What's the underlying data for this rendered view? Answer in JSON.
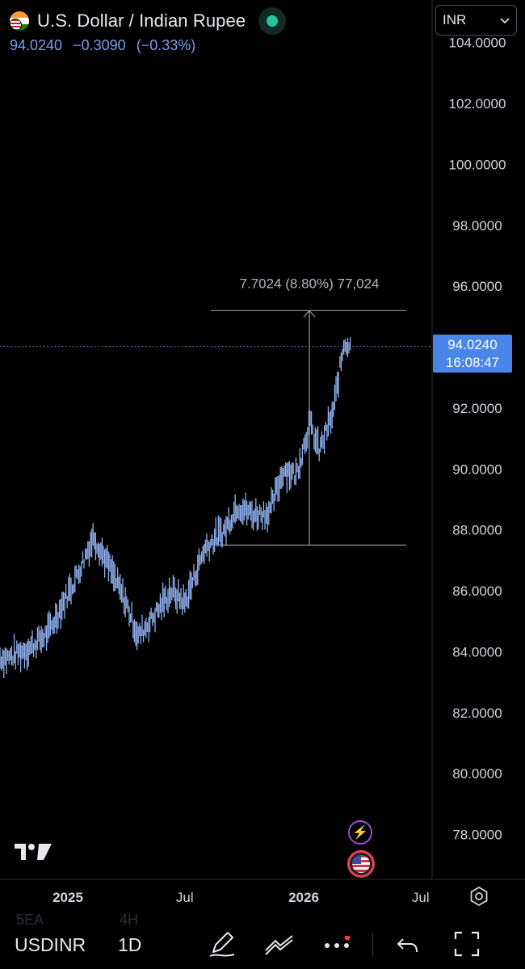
{
  "header": {
    "title": "U.S. Dollar / Indian Rupee",
    "last_price": "94.0240",
    "change": "−0.3090",
    "change_pct": "(−0.33%)",
    "status": "market-open"
  },
  "currency_select": {
    "value": "INR",
    "icon": "chevron-down-icon"
  },
  "price_tag": {
    "price": "94.0240",
    "countdown": "16:08:47"
  },
  "measure": {
    "label": "7.7024 (8.80%) 77,024"
  },
  "colors": {
    "background": "#000000",
    "candle": "#8fb0ee",
    "accent": "#4a86ea",
    "axis_text": "#d1d4dc",
    "measure_line": "#9598a1"
  },
  "chart_data": {
    "type": "line",
    "symbol": "USDINR",
    "interval": "1D",
    "y_ticks": [
      "104.0000",
      "102.0000",
      "100.0000",
      "98.0000",
      "96.0000",
      "94.0000",
      "92.0000",
      "90.0000",
      "88.0000",
      "86.0000",
      "84.0000",
      "82.0000",
      "80.0000",
      "78.0000"
    ],
    "x_ticks": [
      "2025",
      "Jul",
      "2026",
      "Jul"
    ],
    "ylim": [
      76.5,
      105
    ],
    "x": [
      "2024-10-01",
      "2024-11-01",
      "2024-12-01",
      "2025-01-15",
      "2025-02-10",
      "2025-03-01",
      "2025-04-01",
      "2025-04-20",
      "2025-05-15",
      "2025-06-10",
      "2025-07-01",
      "2025-08-01",
      "2025-09-01",
      "2025-09-20",
      "2025-10-15",
      "2025-11-10",
      "2025-12-01",
      "2025-12-20",
      "2026-01-10",
      "2026-01-25",
      "2026-02-15",
      "2026-03-05",
      "2026-03-15"
    ],
    "series": [
      {
        "values": [
          83.8,
          84.1,
          84.6,
          86.5,
          87.8,
          87.0,
          85.6,
          84.5,
          85.2,
          86.0,
          85.6,
          87.4,
          88.0,
          88.8,
          88.5,
          88.6,
          90.0,
          89.8,
          91.5,
          90.6,
          91.8,
          94.2,
          94.0
        ]
      }
    ],
    "last_price": 94.024,
    "measure": {
      "from": 87.5,
      "to": 95.2,
      "delta": 7.7024,
      "delta_pct": 8.8,
      "ticks": 77024
    },
    "grid": false,
    "legend": "none"
  },
  "branding": {
    "logo": "tradingview-logo"
  },
  "floating_icons": [
    "lightning-icon",
    "us-flag-icon"
  ],
  "bottom_bar": {
    "ghost_left": "5EA",
    "ghost_right": "4H",
    "symbol": "USDINR",
    "interval": "1D",
    "tools": [
      "pen-icon",
      "drawings-icon",
      "more-icon",
      "undo-icon",
      "fullscreen-icon"
    ],
    "settings_icon": "settings-icon"
  }
}
